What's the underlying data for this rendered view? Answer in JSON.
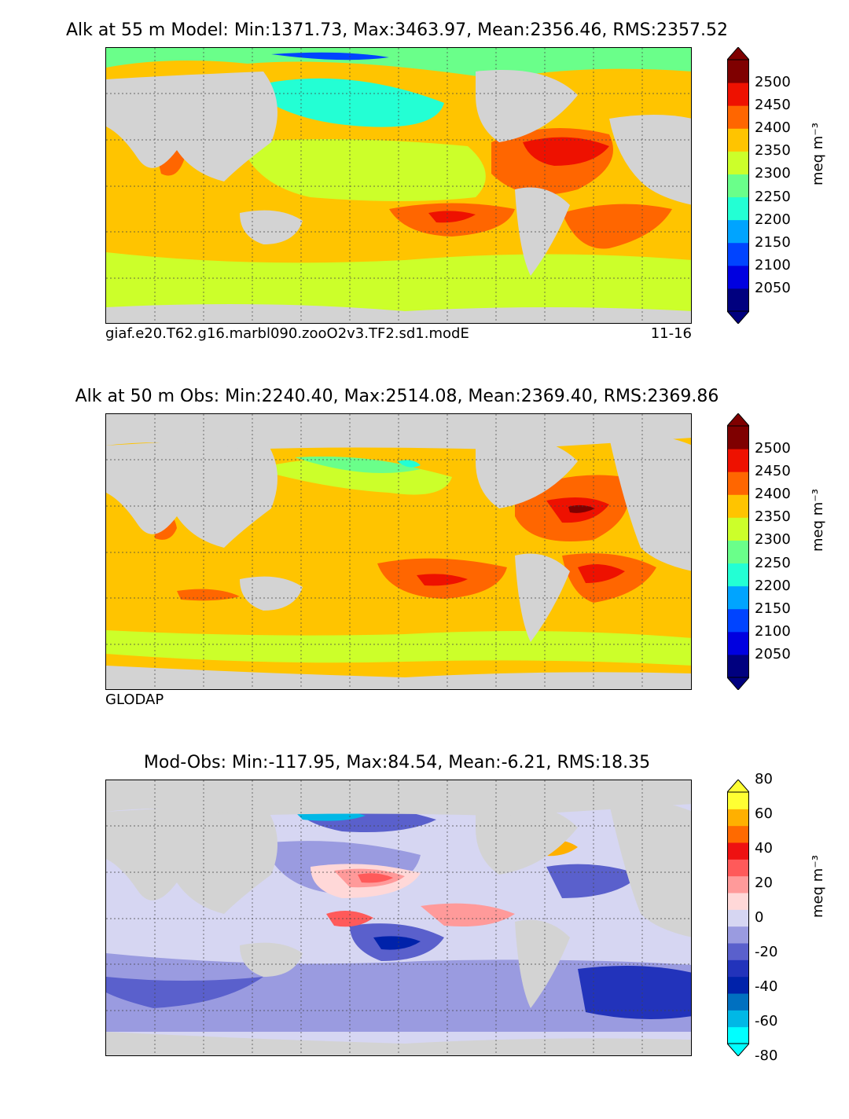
{
  "panels": [
    {
      "title": "Alk at 55 m Model: Min:1371.73, Max:3463.97, Mean:2356.46, RMS:2357.52",
      "caption_left": "giaf.e20.T62.g16.marbl090.zooO2v3.TF2.sd1.modE",
      "caption_right": "11-16",
      "units": "meq m⁻³",
      "colorbar_ticks": [
        "2500",
        "2450",
        "2400",
        "2350",
        "2300",
        "2250",
        "2200",
        "2150",
        "2100",
        "2050"
      ],
      "colors": [
        "#00007f",
        "#0000e0",
        "#0044ff",
        "#00a4ff",
        "#23ffd4",
        "#6aff8a",
        "#ccff2a",
        "#ffc400",
        "#ff6600",
        "#ee1100",
        "#7f0000"
      ]
    },
    {
      "title": "Alk at 50 m Obs: Min:2240.40, Max:2514.08, Mean:2369.40, RMS:2369.86",
      "caption_left": "GLODAP",
      "caption_right": "",
      "units": "meq m⁻³",
      "colorbar_ticks": [
        "2500",
        "2450",
        "2400",
        "2350",
        "2300",
        "2250",
        "2200",
        "2150",
        "2100",
        "2050"
      ],
      "colors": [
        "#00007f",
        "#0000e0",
        "#0044ff",
        "#00a4ff",
        "#23ffd4",
        "#6aff8a",
        "#ccff2a",
        "#ffc400",
        "#ff6600",
        "#ee1100",
        "#7f0000"
      ]
    },
    {
      "title": "Mod-Obs: Min:-117.95, Max:84.54, Mean:-6.21, RMS:18.35",
      "caption_left": "",
      "caption_right": "",
      "units": "meq m⁻³",
      "colorbar_ticks": [
        "80",
        "60",
        "40",
        "20",
        "0",
        "-20",
        "-40",
        "-60",
        "-80"
      ],
      "colors": [
        "#00ffff",
        "#00b8e6",
        "#0070c0",
        "#0022aa",
        "#2233bb",
        "#5a60cc",
        "#9a9be0",
        "#d6d6f2",
        "#ffd8d8",
        "#ff9a9a",
        "#ff5a5a",
        "#ee1111",
        "#ff6a00",
        "#ffb000",
        "#ffff33"
      ]
    }
  ]
}
